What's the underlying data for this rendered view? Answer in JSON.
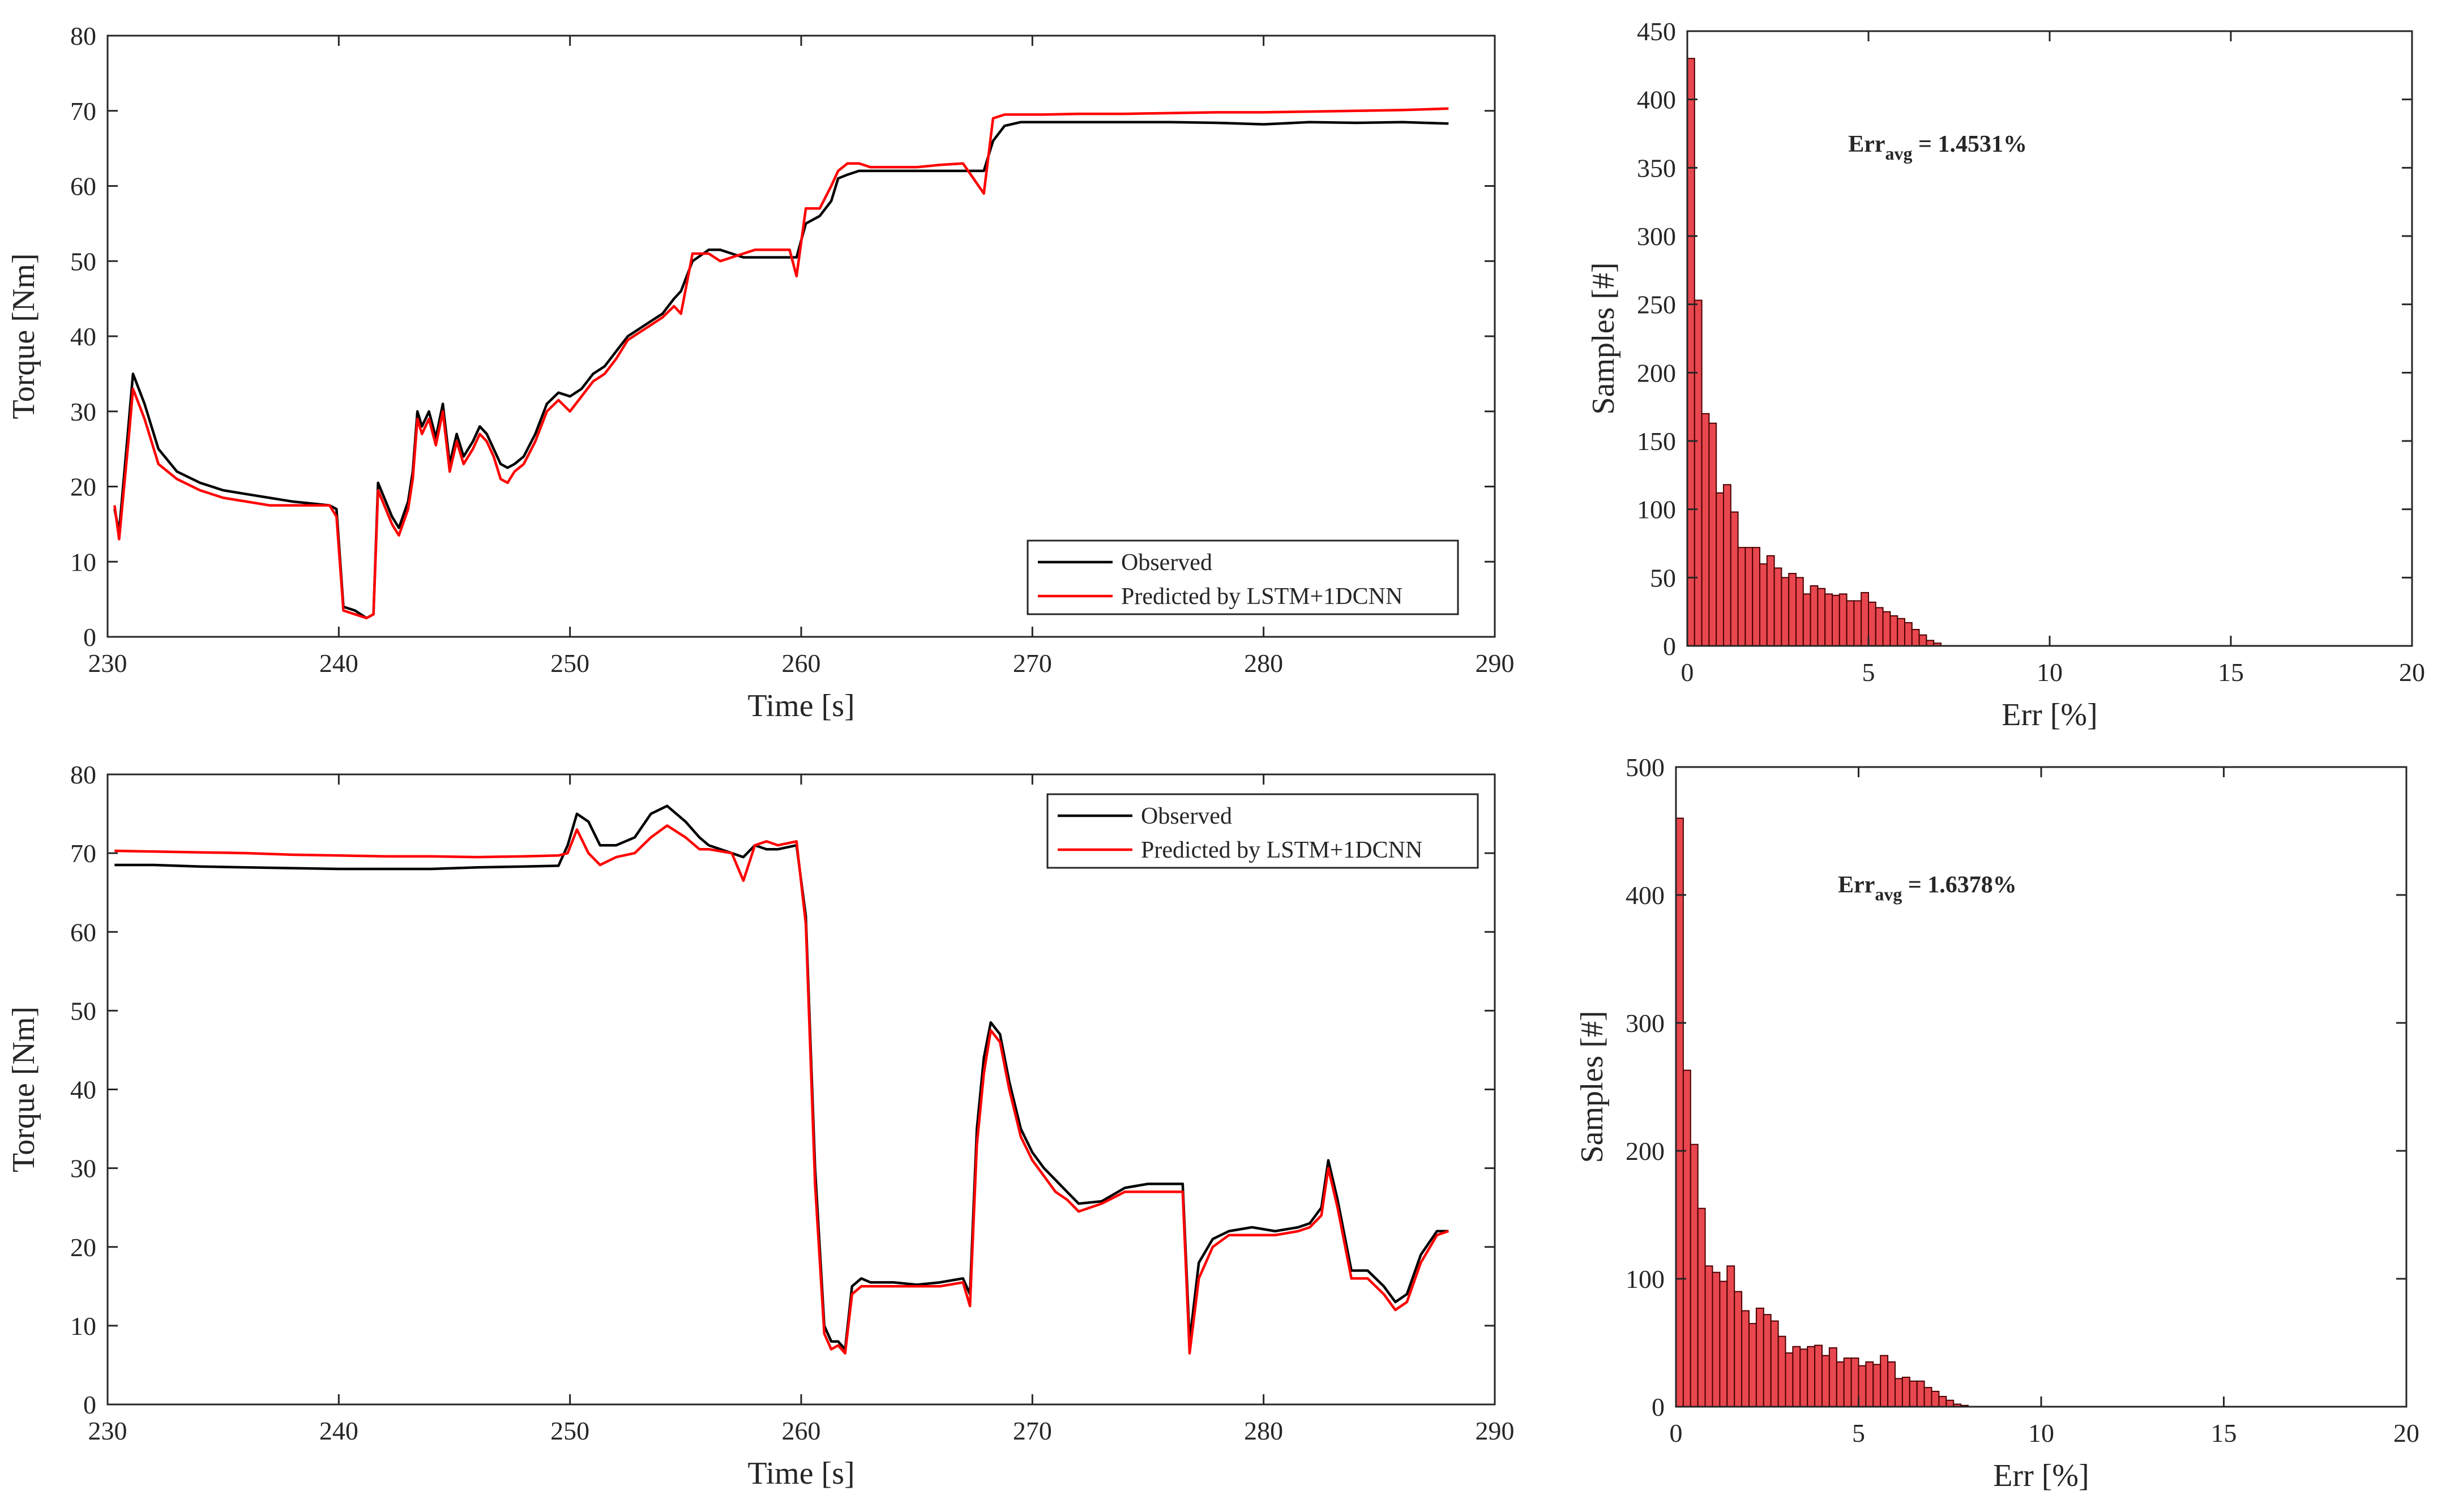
{
  "figure": {
    "colors": {
      "observed": "#000000",
      "predicted": "#ff0000",
      "bar_fill": "#e8474f",
      "bar_edge": "#4a0000",
      "axes": "#262626"
    },
    "font": "serif"
  },
  "chart_data": [
    {
      "id": "top-left-line",
      "type": "line",
      "xlabel": "Time [s]",
      "ylabel": "Torque [Nm]",
      "xlim": [
        230,
        290
      ],
      "ylim": [
        0,
        80
      ],
      "xticks": [
        230,
        240,
        250,
        260,
        270,
        280,
        290
      ],
      "yticks": [
        0,
        10,
        20,
        30,
        40,
        50,
        60,
        70,
        80
      ],
      "legend_position": "bottom-right",
      "series": [
        {
          "name": "Observed",
          "color": "#000000",
          "x": [
            230.3,
            230.5,
            230.9,
            231.1,
            231.6,
            232.2,
            233,
            234,
            235,
            236,
            237,
            238,
            239.6,
            239.9,
            240.2,
            240.7,
            241.2,
            241.5,
            241.7,
            241.9,
            242.3,
            242.6,
            243.0,
            243.2,
            243.4,
            243.6,
            243.9,
            244.2,
            244.5,
            244.8,
            245.1,
            245.4,
            245.8,
            246.1,
            246.4,
            246.7,
            247.0,
            247.3,
            247.6,
            248.0,
            248.5,
            249.0,
            249.5,
            250.0,
            250.5,
            251.0,
            251.5,
            252.0,
            252.5,
            253.0,
            253.5,
            254.0,
            254.5,
            254.8,
            255.3,
            256.0,
            256.5,
            257,
            257.5,
            258,
            258.5,
            259,
            259.5,
            259.8,
            260.2,
            260.8,
            261.3,
            261.6,
            262,
            262.5,
            263,
            264,
            265,
            266,
            267,
            267.9,
            268.3,
            268.8,
            269.5,
            270.5,
            272,
            274,
            276,
            278,
            280,
            282,
            284,
            286,
            288
          ],
          "y": [
            17,
            14,
            28,
            35,
            31,
            25,
            22,
            20.5,
            19.5,
            19,
            18.5,
            18,
            17.5,
            17,
            4,
            3.5,
            2.5,
            3,
            20.5,
            19,
            16,
            14.5,
            18,
            22,
            30,
            28,
            30,
            26.5,
            31,
            23,
            27,
            24,
            26,
            28,
            27,
            25,
            23,
            22.5,
            23,
            24,
            27,
            31,
            32.5,
            32,
            33,
            35,
            36,
            38,
            40,
            41,
            42,
            43,
            45,
            46,
            50,
            51.5,
            51.5,
            51,
            50.5,
            50.5,
            50.5,
            50.5,
            50.5,
            50.5,
            55,
            56,
            58,
            61,
            61.5,
            62,
            62,
            62,
            62,
            62,
            62,
            62,
            66,
            68,
            68.5,
            68.5,
            68.5,
            68.5,
            68.5,
            68.4,
            68.2,
            68.5,
            68.4,
            68.5,
            68.3
          ]
        },
        {
          "name": "Predicted by LSTM+1DCNN",
          "color": "#ff0000",
          "x": [
            230.3,
            230.5,
            230.9,
            231.1,
            231.6,
            232.2,
            233,
            234,
            235,
            236,
            237,
            238,
            239.6,
            239.9,
            240.2,
            240.7,
            241.2,
            241.5,
            241.7,
            241.9,
            242.3,
            242.6,
            243.0,
            243.2,
            243.4,
            243.6,
            243.9,
            244.2,
            244.5,
            244.8,
            245.1,
            245.4,
            245.8,
            246.1,
            246.4,
            246.7,
            247.0,
            247.3,
            247.6,
            248.0,
            248.5,
            249.0,
            249.5,
            250.0,
            250.5,
            251.0,
            251.5,
            252.0,
            252.5,
            253.0,
            253.5,
            254.0,
            254.5,
            254.8,
            255.3,
            256.0,
            256.5,
            257,
            257.5,
            258,
            258.5,
            259,
            259.5,
            259.8,
            260.2,
            260.8,
            261.3,
            261.6,
            262,
            262.5,
            263,
            264,
            265,
            266,
            267,
            267.9,
            268.3,
            268.8,
            269.5,
            270.5,
            272,
            274,
            276,
            278,
            280,
            282,
            284,
            286,
            288
          ],
          "y": [
            17.5,
            13,
            26,
            33,
            29,
            23,
            21,
            19.5,
            18.5,
            18,
            17.5,
            17.5,
            17.5,
            16,
            3.5,
            3,
            2.5,
            3,
            19.5,
            18,
            15,
            13.5,
            17,
            21,
            29,
            27,
            29,
            25.5,
            30,
            22,
            26,
            23,
            25,
            27,
            26,
            24,
            21,
            20.5,
            22,
            23,
            26,
            30,
            31.5,
            30,
            32,
            34,
            35,
            37,
            39.5,
            40.5,
            41.5,
            42.5,
            44,
            43,
            51,
            51,
            50,
            50.5,
            51,
            51.5,
            51.5,
            51.5,
            51.5,
            48,
            57,
            57,
            60,
            62,
            63,
            63,
            62.5,
            62.5,
            62.5,
            62.8,
            63,
            59,
            69,
            69.5,
            69.5,
            69.5,
            69.6,
            69.6,
            69.7,
            69.8,
            69.8,
            69.9,
            70,
            70.1,
            70.3
          ]
        }
      ]
    },
    {
      "id": "top-right-hist",
      "type": "bar",
      "xlabel": "Err [%]",
      "ylabel": "Samples [#]",
      "xlim": [
        0,
        20
      ],
      "ylim": [
        0,
        450
      ],
      "xticks": [
        0,
        5,
        10,
        15,
        20
      ],
      "yticks": [
        0,
        50,
        100,
        150,
        200,
        250,
        300,
        350,
        400,
        450
      ],
      "bin_width": 0.2,
      "annotation": {
        "base": "Err",
        "sub": "avg",
        "value": " = 1.4531%"
      },
      "values": [
        430,
        253,
        170,
        163,
        112,
        118,
        98,
        72,
        72,
        72,
        60,
        66,
        57,
        50,
        53,
        50,
        38,
        44,
        42,
        38,
        37,
        38,
        33,
        33,
        39,
        32,
        28,
        25,
        22,
        20,
        17,
        12,
        8,
        4,
        2
      ]
    },
    {
      "id": "bottom-left-line",
      "type": "line",
      "xlabel": "Time [s]",
      "ylabel": "Torque [Nm]",
      "xlim": [
        230,
        290
      ],
      "ylim": [
        0,
        80
      ],
      "xticks": [
        230,
        240,
        250,
        260,
        270,
        280,
        290
      ],
      "yticks": [
        0,
        10,
        20,
        30,
        40,
        50,
        60,
        70,
        80
      ],
      "legend_position": "top-right",
      "series": [
        {
          "name": "Observed",
          "color": "#000000",
          "x": [
            230.3,
            232,
            234,
            236,
            238,
            240,
            242,
            244,
            246,
            248,
            249.5,
            249.9,
            250.3,
            250.8,
            251.3,
            252,
            252.8,
            253.5,
            254.2,
            255,
            255.6,
            256,
            257,
            257.5,
            258,
            258.5,
            259,
            259.8,
            260.2,
            260.6,
            261,
            261.3,
            261.6,
            261.9,
            262.2,
            262.6,
            263,
            264,
            265,
            266,
            267,
            267.3,
            267.6,
            267.9,
            268.2,
            268.6,
            269,
            269.5,
            270,
            270.5,
            271,
            271.5,
            272,
            273,
            274,
            275,
            276.3,
            276.5,
            276.8,
            277.2,
            277.8,
            278.5,
            279.5,
            280.5,
            281.5,
            282,
            282.5,
            282.8,
            283.2,
            283.8,
            284.5,
            285.2,
            285.7,
            286.2,
            286.8,
            287.5,
            288
          ],
          "y": [
            68.5,
            68.5,
            68.3,
            68.2,
            68.1,
            68,
            68,
            68,
            68.2,
            68.3,
            68.4,
            71,
            75,
            74,
            71,
            71,
            72,
            75,
            76,
            74,
            72,
            71,
            70,
            69.5,
            71,
            70.5,
            70.5,
            71,
            62,
            30,
            10,
            8,
            8,
            7,
            15,
            16,
            15.5,
            15.5,
            15.2,
            15.5,
            16,
            14,
            35,
            44,
            48.5,
            47,
            41,
            35,
            32,
            30,
            28.5,
            27,
            25.5,
            25.8,
            27.5,
            28,
            28,
            28,
            8,
            18,
            21,
            22,
            22.5,
            22,
            22.5,
            23,
            25,
            31,
            26,
            17,
            17,
            15,
            13,
            14,
            19,
            22,
            22
          ]
        },
        {
          "name": "Predicted by LSTM+1DCNN",
          "color": "#ff0000",
          "x": [
            230.3,
            232,
            234,
            236,
            238,
            240,
            242,
            244,
            246,
            248,
            249.5,
            249.9,
            250.3,
            250.8,
            251.3,
            252,
            252.8,
            253.5,
            254.2,
            255,
            255.6,
            256,
            257,
            257.5,
            258,
            258.5,
            259,
            259.8,
            260.2,
            260.6,
            261,
            261.3,
            261.6,
            261.9,
            262.2,
            262.6,
            263,
            264,
            265,
            266,
            267,
            267.3,
            267.6,
            267.9,
            268.2,
            268.6,
            269,
            269.5,
            270,
            270.5,
            271,
            271.5,
            272,
            273,
            274,
            275,
            276.3,
            276.5,
            276.8,
            277.2,
            277.8,
            278.5,
            279.5,
            280.5,
            281.5,
            282,
            282.5,
            282.8,
            283.2,
            283.8,
            284.5,
            285.2,
            285.7,
            286.2,
            286.8,
            287.5,
            288
          ],
          "y": [
            70.3,
            70.2,
            70.1,
            70,
            69.8,
            69.7,
            69.6,
            69.6,
            69.5,
            69.6,
            69.7,
            70,
            73,
            70,
            68.5,
            69.5,
            70,
            72,
            73.5,
            72,
            70.5,
            70.5,
            70,
            66.5,
            71,
            71.5,
            71,
            71.5,
            61,
            28,
            9,
            7,
            7.5,
            6.5,
            14,
            15,
            15,
            15,
            15,
            15,
            15.5,
            12.5,
            33,
            42,
            47.5,
            46,
            40,
            34,
            31,
            29,
            27,
            26,
            24.5,
            25.5,
            27,
            27,
            27,
            27,
            6.5,
            16,
            20,
            21.5,
            21.5,
            21.5,
            22,
            22.5,
            24,
            30,
            25,
            16,
            16,
            14,
            12,
            13,
            18,
            21.5,
            22
          ]
        }
      ]
    },
    {
      "id": "bottom-right-hist",
      "type": "bar",
      "xlabel": "Err [%]",
      "ylabel": "Samples [#]",
      "xlim": [
        0,
        20
      ],
      "ylim": [
        0,
        500
      ],
      "xticks": [
        0,
        5,
        10,
        15,
        20
      ],
      "yticks": [
        0,
        100,
        200,
        300,
        400,
        500
      ],
      "bin_width": 0.2,
      "annotation": {
        "base": "Err",
        "sub": "avg",
        "value": " = 1.6378%"
      },
      "values": [
        460,
        263,
        205,
        155,
        110,
        105,
        98,
        110,
        90,
        75,
        65,
        77,
        72,
        67,
        55,
        42,
        47,
        45,
        47,
        48,
        40,
        46,
        35,
        38,
        38,
        32,
        35,
        33,
        40,
        35,
        22,
        23,
        20,
        20,
        15,
        12,
        8,
        5,
        2,
        1
      ]
    }
  ]
}
